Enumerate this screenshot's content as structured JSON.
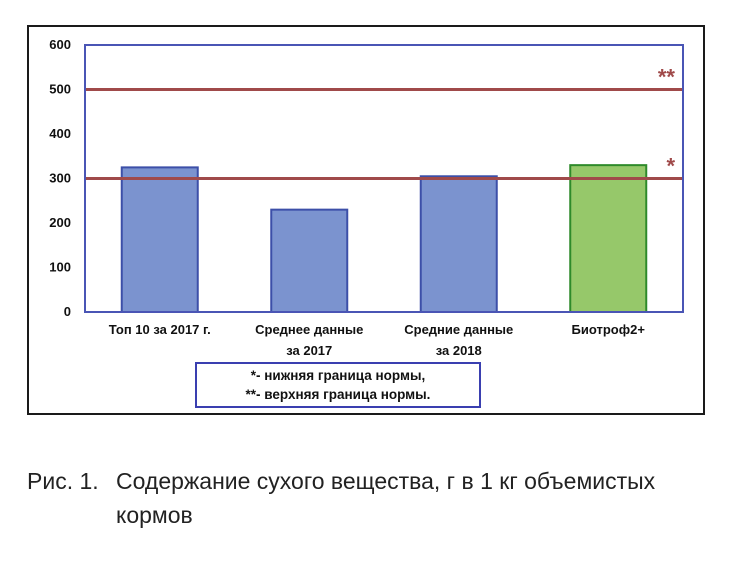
{
  "caption": {
    "number": "Рис. 1.",
    "text": "Содержание сухого вещества, г в 1 кг объемистых кормов"
  },
  "legend": {
    "lines": [
      "*- нижняя граница нормы,",
      "**- верхняя граница нормы."
    ]
  },
  "chart_data": {
    "type": "bar",
    "categories": [
      [
        "Топ 10 за 2017 г."
      ],
      [
        "Среднее данные",
        "за 2017"
      ],
      [
        "Средние данные",
        "за 2018"
      ],
      [
        "Биотроф2+"
      ]
    ],
    "values": [
      325,
      230,
      305,
      330
    ],
    "bar_colors": [
      "#7b93cf",
      "#7b93cf",
      "#7b93cf",
      "#96c86a"
    ],
    "bar_edge_colors": [
      "#3c4fa8",
      "#3c4fa8",
      "#3c4fa8",
      "#2e8a2a"
    ],
    "ylim": [
      0,
      600
    ],
    "yticks": [
      0,
      100,
      200,
      300,
      400,
      500,
      600
    ],
    "reference_lines": [
      {
        "value": 500,
        "marker": "**",
        "color": "#a04a4a"
      },
      {
        "value": 300,
        "marker": "*",
        "color": "#a04a4a"
      }
    ],
    "plot_border_color": "#4a55b5",
    "grid": false,
    "legend_position": "bottom-center"
  }
}
